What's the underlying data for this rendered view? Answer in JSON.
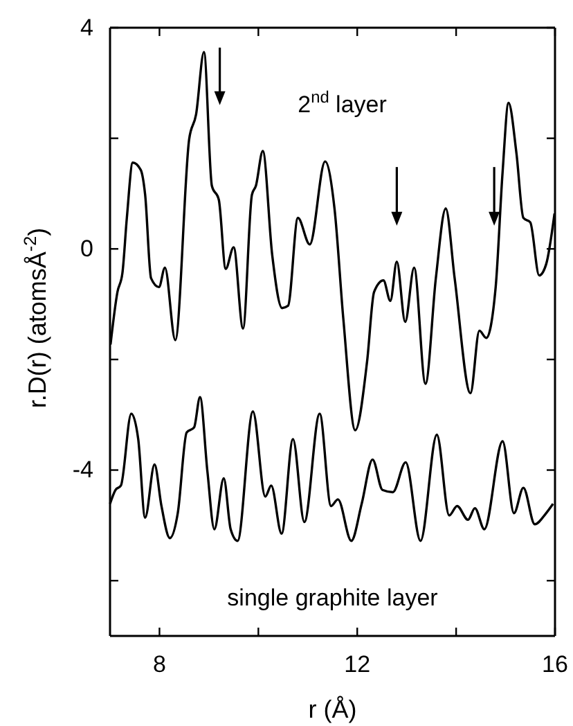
{
  "chart_data": {
    "type": "line",
    "xlabel": "r (Å)",
    "ylabel": "r.D(r) (atomsÅ$^{-2}$)",
    "xlim": [
      7,
      16
    ],
    "ylim": [
      -7,
      4
    ],
    "xticks": [
      8,
      {
        "value": 10,
        "label": null
      },
      12,
      {
        "value": 14,
        "label": null
      },
      16
    ],
    "yticks": [
      {
        "value": -6,
        "label": null
      },
      -4,
      {
        "value": -2,
        "label": null
      },
      0,
      {
        "value": 2,
        "label": null
      },
      4
    ],
    "grid": false,
    "marker": "none",
    "line_style": "solid",
    "annotations": [
      "2$^{nd}$ layer",
      "single graphite layer"
    ],
    "series": [
      {
        "color": "#000000",
        "x": [
          7.01,
          7.15,
          7.25,
          7.34,
          7.46,
          7.62,
          7.71,
          7.83,
          7.99,
          8.11,
          8.32,
          8.6,
          8.74,
          8.9,
          9.06,
          9.2,
          9.34,
          9.5,
          9.69,
          9.87,
          9.95,
          10.09,
          10.28,
          10.48,
          10.6,
          10.8,
          11.04,
          11.35,
          11.54,
          11.72,
          11.96,
          12.2,
          12.34,
          12.53,
          12.67,
          12.8,
          12.97,
          13.15,
          13.38,
          13.59,
          13.79,
          13.97,
          14.29,
          14.47,
          14.61,
          14.8,
          14.94,
          15.06,
          15.22,
          15.36,
          15.5,
          15.68,
          15.82,
          15.99
        ],
        "values": [
          -1.73,
          -0.78,
          -0.44,
          0.56,
          1.56,
          1.43,
          0.98,
          -0.53,
          -0.69,
          -0.34,
          -1.65,
          1.98,
          2.43,
          3.56,
          1.14,
          0.89,
          -0.36,
          0.03,
          -1.44,
          0.98,
          1.14,
          1.77,
          -0.11,
          -1.07,
          -1.03,
          0.56,
          0.08,
          1.58,
          0.73,
          -1.28,
          -3.28,
          -2.03,
          -0.78,
          -0.57,
          -0.94,
          -0.23,
          -1.32,
          -0.34,
          -2.44,
          -0.53,
          0.73,
          -0.53,
          -2.61,
          -1.48,
          -1.61,
          -0.69,
          1.39,
          2.64,
          1.73,
          0.56,
          0.48,
          -0.48,
          -0.28,
          0.64
        ]
      },
      {
        "color": "#000000",
        "x": [
          7.0,
          7.11,
          7.22,
          7.43,
          7.57,
          7.71,
          7.9,
          8.04,
          8.21,
          8.37,
          8.55,
          8.7,
          8.82,
          8.97,
          9.11,
          9.3,
          9.44,
          9.58,
          9.89,
          10.14,
          10.26,
          10.47,
          10.7,
          10.93,
          11.24,
          11.47,
          11.61,
          11.88,
          12.09,
          12.31,
          12.51,
          12.72,
          12.98,
          13.28,
          13.61,
          13.86,
          14.02,
          14.24,
          14.38,
          14.57,
          14.94,
          15.17,
          15.36,
          15.59,
          15.82,
          15.96
        ],
        "values": [
          -4.61,
          -4.36,
          -4.28,
          -2.98,
          -3.44,
          -4.86,
          -3.9,
          -4.65,
          -5.23,
          -4.78,
          -3.32,
          -3.23,
          -2.68,
          -4.03,
          -5.07,
          -4.15,
          -5.07,
          -5.28,
          -2.94,
          -4.48,
          -4.28,
          -5.15,
          -3.44,
          -4.94,
          -2.98,
          -4.65,
          -4.53,
          -5.28,
          -4.61,
          -3.81,
          -4.36,
          -4.4,
          -3.86,
          -5.28,
          -3.36,
          -4.82,
          -4.65,
          -4.9,
          -4.69,
          -5.07,
          -3.48,
          -4.78,
          -4.32,
          -4.98,
          -4.78,
          -4.61
        ]
      }
    ]
  }
}
